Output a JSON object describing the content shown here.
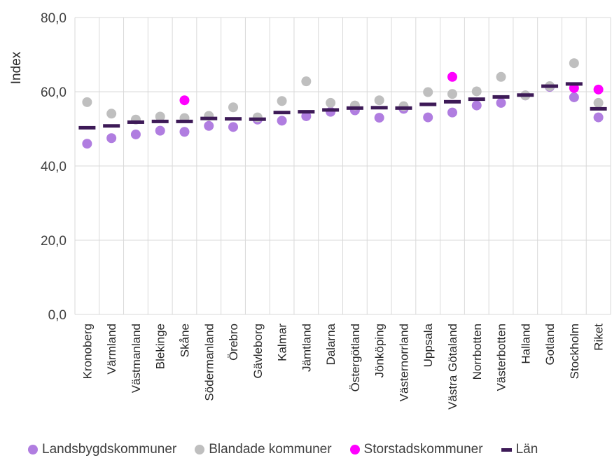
{
  "chart_data": {
    "type": "scatter",
    "title": "",
    "xlabel": "",
    "ylabel": "Index",
    "ylim": [
      0,
      80
    ],
    "yticks": [
      "0,0",
      "20,0",
      "40,0",
      "60,0",
      "80,0"
    ],
    "grid": true,
    "legend_position": "bottom",
    "categories": [
      "Kronoberg",
      "Värmland",
      "Västmanland",
      "Blekinge",
      "Skåne",
      "Södermanland",
      "Örebro",
      "Gävleborg",
      "Kalmar",
      "Jämtland",
      "Dalarna",
      "Östergötland",
      "Jönköping",
      "Västernorrland",
      "Uppsala",
      "Västra Götaland",
      "Norrbotten",
      "Västerbotten",
      "Halland",
      "Gotland",
      "Stockholm",
      "Riket"
    ],
    "series": [
      {
        "name": "Landsbygdskommuner",
        "marker": "dot",
        "color": "#b07de0",
        "values": [
          46.0,
          47.5,
          48.5,
          49.5,
          49.2,
          50.8,
          50.5,
          52.5,
          52.2,
          53.4,
          54.6,
          55.0,
          53.0,
          55.4,
          53.1,
          54.4,
          56.3,
          57.0,
          59.0,
          61.3,
          58.5,
          53.1
        ]
      },
      {
        "name": "Blandade kommuner",
        "marker": "dot",
        "color": "#bfbfbf",
        "values": [
          57.2,
          54.1,
          52.5,
          53.3,
          52.9,
          53.5,
          55.8,
          53.1,
          57.5,
          62.8,
          57.0,
          56.3,
          57.7,
          56.1,
          59.9,
          59.4,
          60.1,
          64.0,
          59.0,
          61.5,
          67.7,
          57.0
        ]
      },
      {
        "name": "Storstadskommuner",
        "marker": "dot",
        "color": "#ff00ff",
        "values": [
          null,
          null,
          null,
          null,
          57.7,
          null,
          null,
          null,
          null,
          null,
          null,
          null,
          null,
          null,
          null,
          64.0,
          null,
          null,
          null,
          null,
          61.0,
          60.6
        ]
      },
      {
        "name": "Län",
        "marker": "dash",
        "color": "#3d1a57",
        "values": [
          50.3,
          50.8,
          51.8,
          52.0,
          52.0,
          52.8,
          52.7,
          52.6,
          54.4,
          54.6,
          55.1,
          55.6,
          55.7,
          55.6,
          56.6,
          57.3,
          58.0,
          58.6,
          59.1,
          61.5,
          62.1,
          55.4
        ]
      }
    ]
  }
}
